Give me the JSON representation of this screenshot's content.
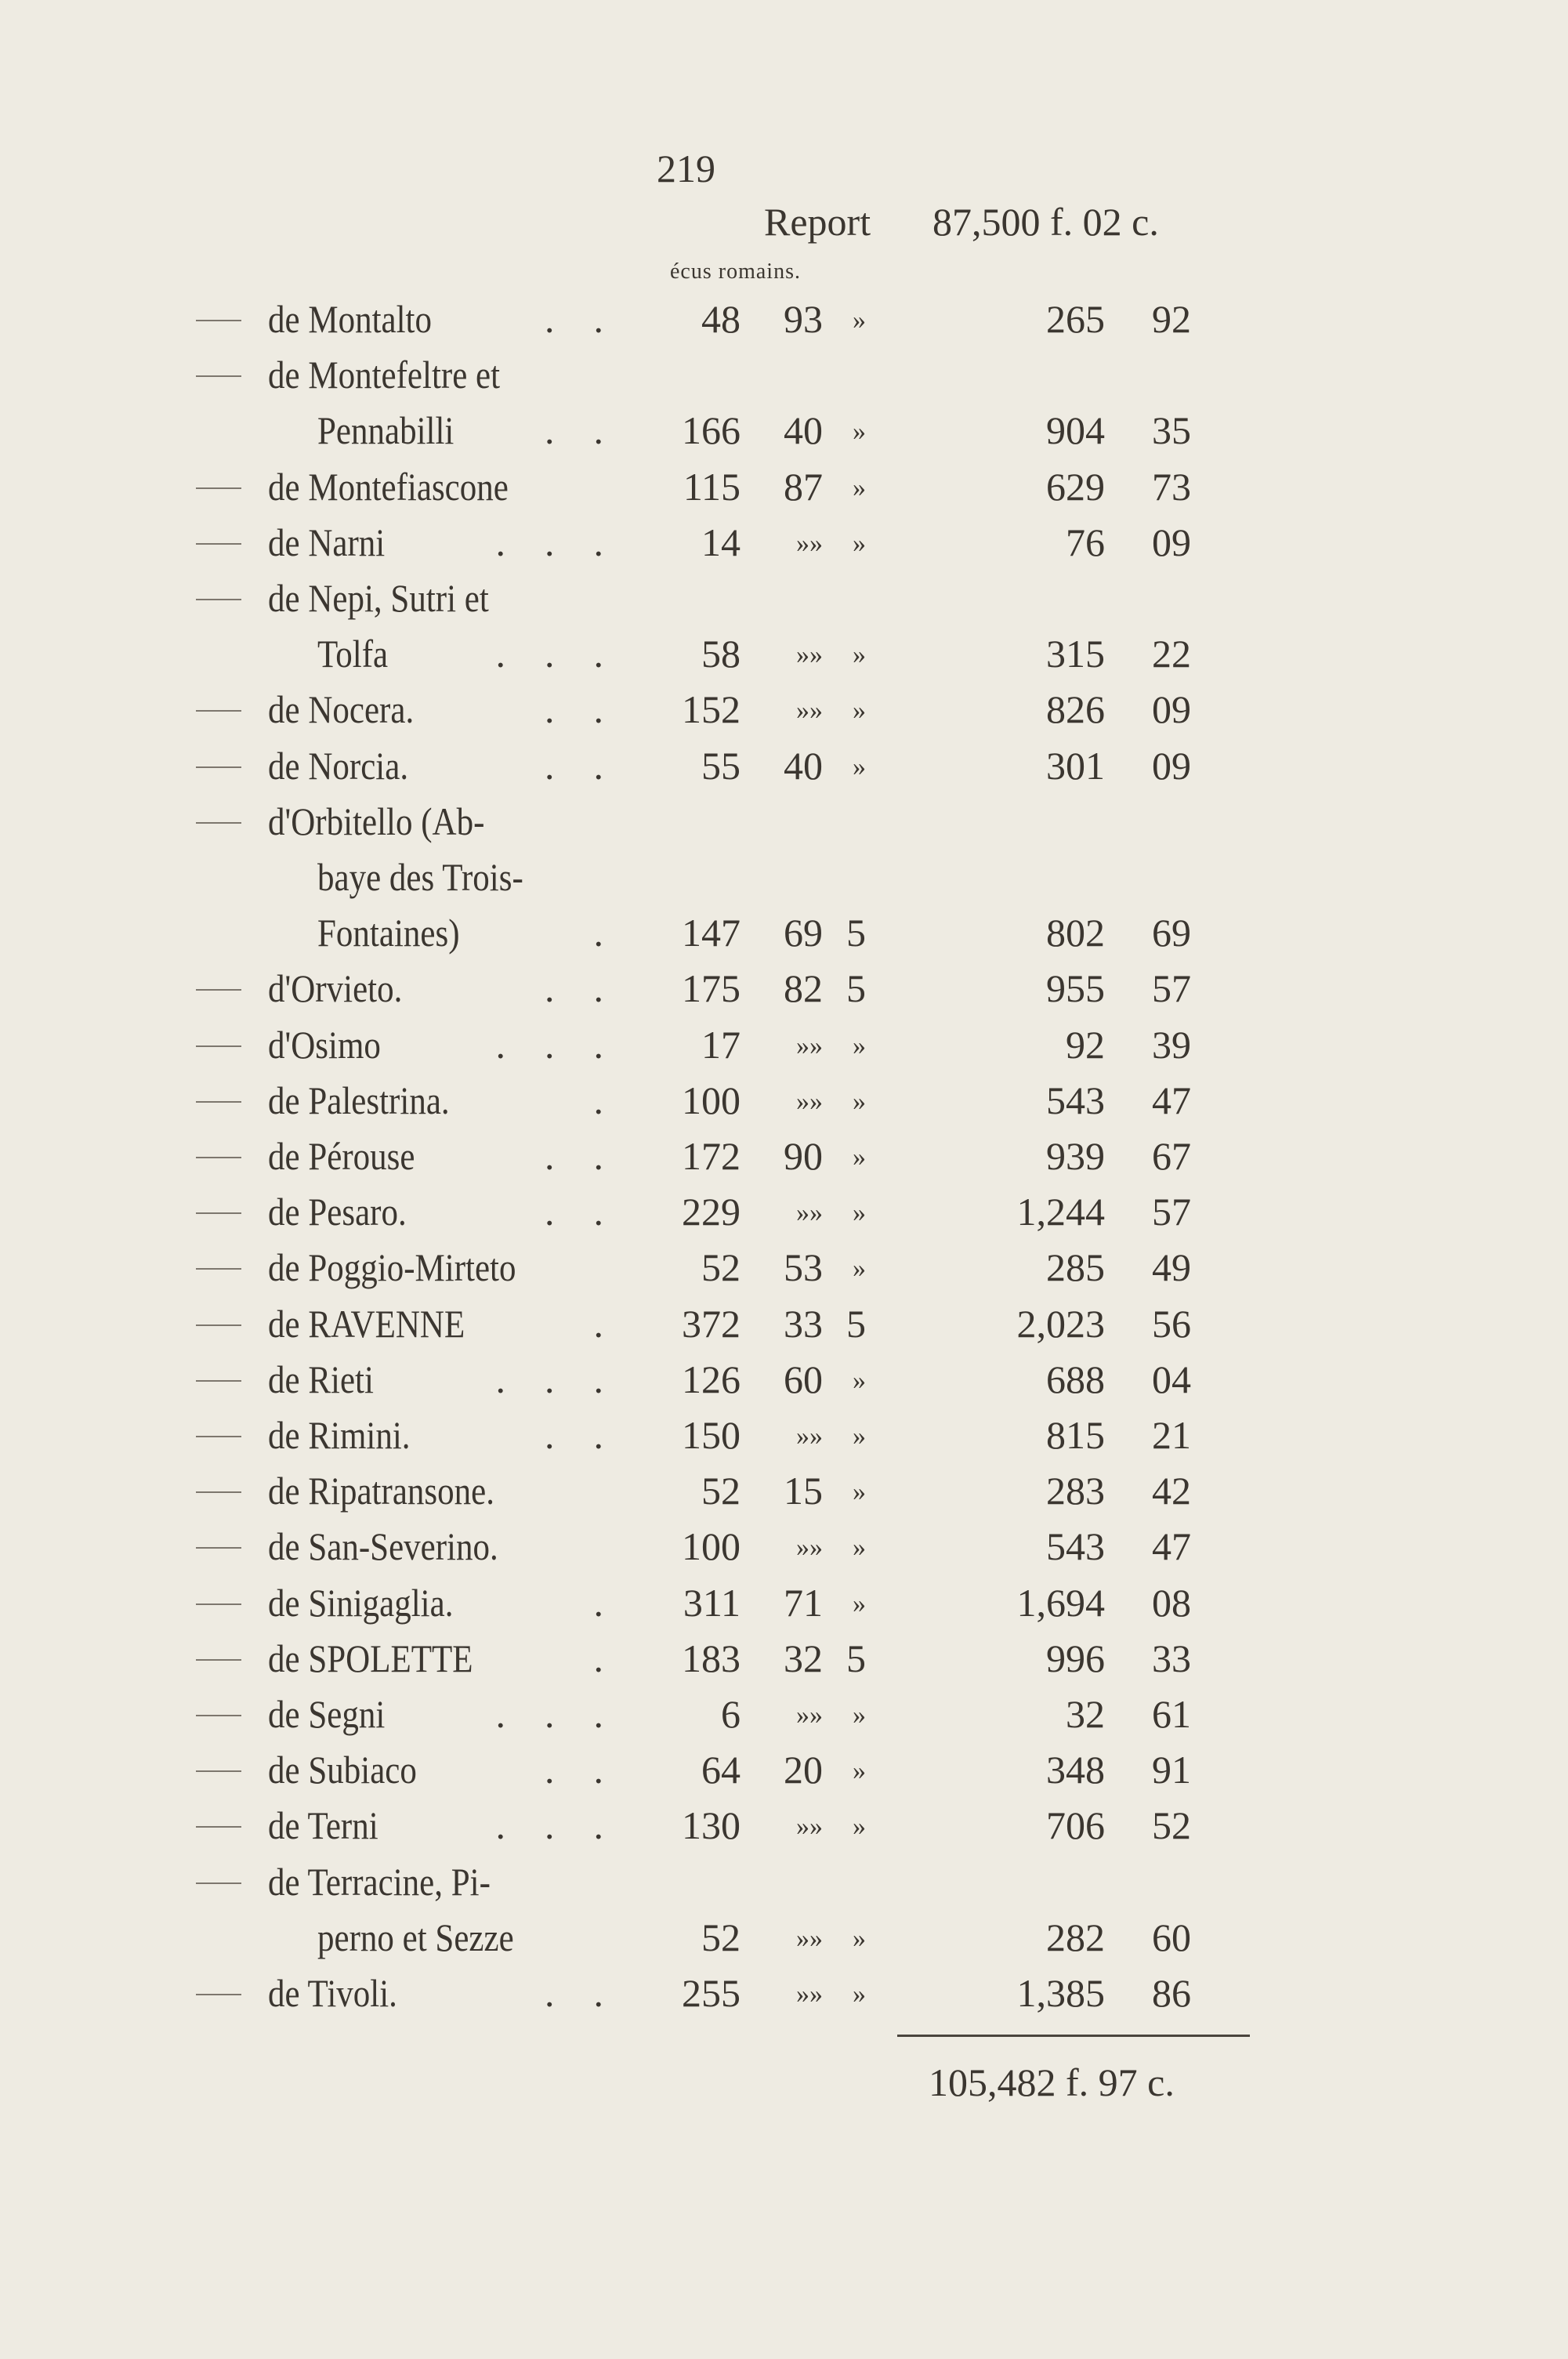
{
  "page_number": "219",
  "report": {
    "label": "Report",
    "amount": "87,500 f. 02 c."
  },
  "unit_label": "écus romains.",
  "entries": [
    {
      "lines": [
        "de Montalto"
      ],
      "dots": ". .",
      "ecus": "48",
      "dec": "93",
      "mill": "»",
      "francs": "265",
      "cents": "92"
    },
    {
      "lines": [
        "de Montefeltre et",
        "Pennabilli"
      ],
      "dots": ". .",
      "ecus": "166",
      "dec": "40",
      "mill": "»",
      "francs": "904",
      "cents": "35"
    },
    {
      "lines": [
        "de  Montefiascone"
      ],
      "dots": "",
      "ecus": "115",
      "dec": "87",
      "mill": "»",
      "francs": "629",
      "cents": "73"
    },
    {
      "lines": [
        "de Narni"
      ],
      "dots": ". . .",
      "ecus": "14",
      "dec": "»»",
      "mill": "»",
      "francs": "76",
      "cents": "09"
    },
    {
      "lines": [
        "de Nepi,  Sutri et",
        "Tolfa"
      ],
      "dots": ". . .",
      "ecus": "58",
      "dec": "»»",
      "mill": "»",
      "francs": "315",
      "cents": "22"
    },
    {
      "lines": [
        "de Nocera."
      ],
      "dots": ". .",
      "ecus": "152",
      "dec": "»»",
      "mill": "»",
      "francs": "826",
      "cents": "09"
    },
    {
      "lines": [
        "de Norcia."
      ],
      "dots": ". .",
      "ecus": "55",
      "dec": "40",
      "mill": "»",
      "francs": "301",
      "cents": "09"
    },
    {
      "lines": [
        "d'Orbitello  (Ab-",
        "baye des Trois-",
        "Fontaines)"
      ],
      "dots": ".",
      "ecus": "147",
      "dec": "69",
      "mill": "5",
      "francs": "802",
      "cents": "69"
    },
    {
      "lines": [
        "d'Orvieto."
      ],
      "dots": ". .",
      "ecus": "175",
      "dec": "82",
      "mill": "5",
      "francs": "955",
      "cents": "57"
    },
    {
      "lines": [
        "d'Osimo"
      ],
      "dots": ". . .",
      "ecus": "17",
      "dec": "»»",
      "mill": "»",
      "francs": "92",
      "cents": "39"
    },
    {
      "lines": [
        "de Palestrina."
      ],
      "dots": ".",
      "ecus": "100",
      "dec": "»»",
      "mill": "»",
      "francs": "543",
      "cents": "47"
    },
    {
      "lines": [
        "de Pérouse"
      ],
      "dots": ". .",
      "ecus": "172",
      "dec": "90",
      "mill": "»",
      "francs": "939",
      "cents": "67"
    },
    {
      "lines": [
        "de Pesaro."
      ],
      "dots": ". .",
      "ecus": "229",
      "dec": "»»",
      "mill": "»",
      "francs": "1,244",
      "cents": "57"
    },
    {
      "lines": [
        "de Poggio-Mirteto"
      ],
      "dots": "",
      "ecus": "52",
      "dec": "53",
      "mill": "»",
      "francs": "285",
      "cents": "49"
    },
    {
      "lines": [
        "de RAVENNE"
      ],
      "dots": ".",
      "ecus": "372",
      "dec": "33",
      "mill": "5",
      "francs": "2,023",
      "cents": "56"
    },
    {
      "lines": [
        "de Rieti"
      ],
      "dots": ". . .",
      "ecus": "126",
      "dec": "60",
      "mill": "»",
      "francs": "688",
      "cents": "04"
    },
    {
      "lines": [
        "de Rimini."
      ],
      "dots": ". .",
      "ecus": "150",
      "dec": "»»",
      "mill": "»",
      "francs": "815",
      "cents": "21"
    },
    {
      "lines": [
        "de Ripatransone."
      ],
      "dots": "",
      "ecus": "52",
      "dec": "15",
      "mill": "»",
      "francs": "283",
      "cents": "42"
    },
    {
      "lines": [
        "de  San-Severino."
      ],
      "dots": "",
      "ecus": "100",
      "dec": "»»",
      "mill": "»",
      "francs": "543",
      "cents": "47"
    },
    {
      "lines": [
        "de Sinigaglia."
      ],
      "dots": ".",
      "ecus": "311",
      "dec": "71",
      "mill": "»",
      "francs": "1,694",
      "cents": "08"
    },
    {
      "lines": [
        "de  SPOLETTE"
      ],
      "dots": ".",
      "ecus": "183",
      "dec": "32",
      "mill": "5",
      "francs": "996",
      "cents": "33"
    },
    {
      "lines": [
        "de Segni"
      ],
      "dots": ". . .",
      "ecus": "6",
      "dec": "»»",
      "mill": "»",
      "francs": "32",
      "cents": "61"
    },
    {
      "lines": [
        "de Subiaco"
      ],
      "dots": ". .",
      "ecus": "64",
      "dec": "20",
      "mill": "»",
      "francs": "348",
      "cents": "91"
    },
    {
      "lines": [
        "de Terni"
      ],
      "dots": ". . .",
      "ecus": "130",
      "dec": "»»",
      "mill": "»",
      "francs": "706",
      "cents": "52"
    },
    {
      "lines": [
        "de Terracine, Pi-",
        "perno et Sezze"
      ],
      "dots": "",
      "ecus": "52",
      "dec": "»»",
      "mill": "»",
      "francs": "282",
      "cents": "60"
    },
    {
      "lines": [
        "de Tivoli."
      ],
      "dots": ". .",
      "ecus": "255",
      "dec": "»»",
      "mill": "»",
      "francs": "1,385",
      "cents": "86"
    }
  ],
  "total": "105,482 f. 97 c."
}
